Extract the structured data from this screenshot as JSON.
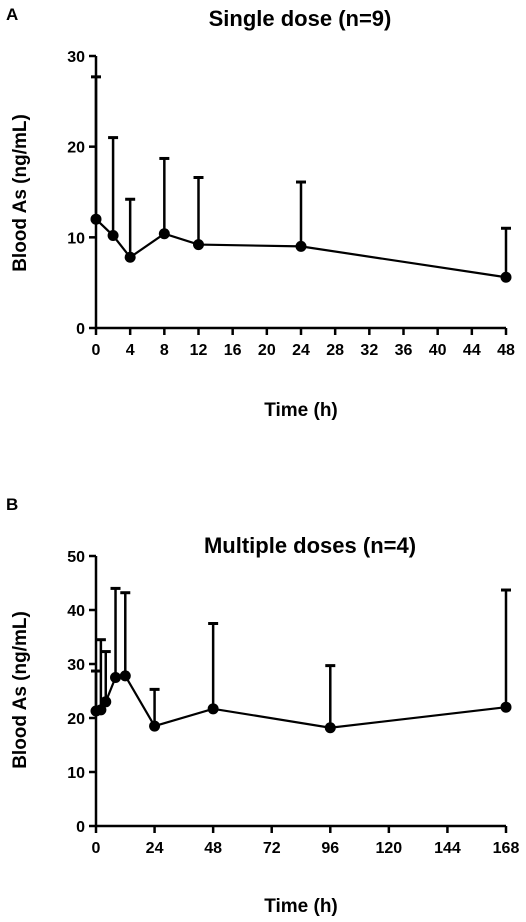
{
  "chart_data": [
    {
      "panel": "A",
      "type": "line",
      "title": "Single dose (n=9)",
      "xlabel": "Time (h)",
      "ylabel": "Blood As (ng/mL)",
      "xlim": [
        0,
        48
      ],
      "ylim": [
        0,
        30
      ],
      "xticks": [
        0,
        4,
        8,
        12,
        16,
        20,
        24,
        28,
        32,
        36,
        40,
        44,
        48
      ],
      "yticks": [
        0,
        10,
        20,
        30
      ],
      "grid": false,
      "series": [
        {
          "x": [
            0,
            2,
            4,
            8,
            12,
            24,
            48
          ],
          "y": [
            12.0,
            10.2,
            7.8,
            10.4,
            9.2,
            9.0,
            5.6
          ],
          "error_upper": [
            27.7,
            21.0,
            14.2,
            18.7,
            16.6,
            16.1,
            11.0
          ]
        }
      ]
    },
    {
      "panel": "B",
      "type": "line",
      "title": "Multiple doses (n=4)",
      "xlabel": "Time (h)",
      "ylabel": "Blood As (ng/mL)",
      "xlim": [
        0,
        168
      ],
      "ylim": [
        0,
        50
      ],
      "xticks": [
        0,
        24,
        48,
        72,
        96,
        120,
        144,
        168
      ],
      "yticks": [
        0,
        10,
        20,
        30,
        40,
        50
      ],
      "grid": false,
      "series": [
        {
          "x": [
            0,
            2,
            4,
            8,
            12,
            24,
            48,
            96,
            168
          ],
          "y": [
            21.3,
            21.5,
            23.0,
            27.5,
            27.8,
            18.5,
            21.7,
            18.2,
            22.0
          ],
          "error_upper": [
            28.7,
            34.5,
            32.3,
            44.0,
            43.2,
            25.3,
            37.5,
            29.7,
            43.7
          ]
        }
      ]
    }
  ]
}
